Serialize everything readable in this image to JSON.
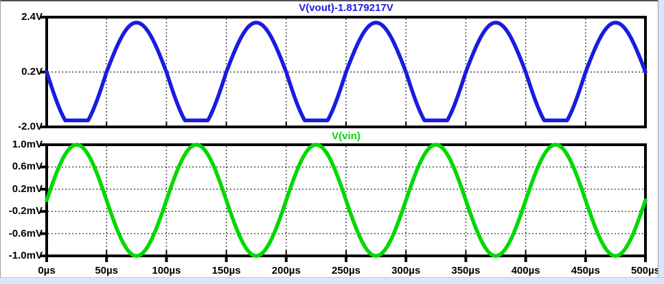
{
  "window_chrome": {
    "edge_strip_color": "#d7e8fb",
    "edge_strip_border_color": "#b7cbe2",
    "top_line_color": "#4f4f4f",
    "left_line_color": "#9e9e9e"
  },
  "chart_data": {
    "type": "line",
    "description": "Two stacked oscilloscope-style transient analysis panes: top pane shows DC-shifted output sine wave with clipped negative peaks, bottom pane shows 1 mV input sine wave; 5 cycles of a 100 us period over 0-500 us.",
    "style": {
      "background": "#ffffff",
      "axis_color": "#000000",
      "grid_color": "#3c3c3c",
      "text_color": "#000000",
      "grid": "dashed"
    },
    "x_axis": {
      "unit": "µs",
      "range": [
        0,
        500
      ],
      "ticks": [
        0,
        50,
        100,
        150,
        200,
        250,
        300,
        350,
        400,
        450,
        500
      ],
      "tick_labels": [
        "0µs",
        "50µs",
        "100µs",
        "150µs",
        "200µs",
        "250µs",
        "300µs",
        "350µs",
        "400µs",
        "450µs",
        "500µs"
      ]
    },
    "panels": [
      {
        "id": "vout",
        "title": "V(vout)-1.8179217V",
        "color": "#1b1be0",
        "y_unit": "V",
        "y_range": [
          -2.0,
          2.4
        ],
        "y_ticks": [
          2.4,
          0.2,
          -2.0
        ],
        "y_tick_labels": [
          "2.4V",
          "0.2V",
          "-2.0V"
        ],
        "grid_y": [
          0.2
        ],
        "series": {
          "name": "V(vout)-1.8179217V",
          "waveform": "inverted_clipped_sine",
          "period_us": 100,
          "phase_deg": 0,
          "cycles": 5,
          "offset": 0.2,
          "amp_up": 1.98,
          "amp_down": 2.35,
          "clip_min": -1.74,
          "peak_max": 2.18,
          "value_at_0us": 0.2
        }
      },
      {
        "id": "vin",
        "title": "V(vin)",
        "color": "#00d900",
        "y_unit": "mV",
        "y_range": [
          -1.0,
          1.0
        ],
        "y_ticks": [
          1.0,
          0.6,
          0.2,
          -0.2,
          -0.6,
          -1.0
        ],
        "y_tick_labels": [
          "1.0mV",
          "0.6mV",
          "0.2mV",
          "-0.2mV",
          "-0.6mV",
          "-1.0mV"
        ],
        "grid_y": [
          0.6,
          0.2,
          -0.2,
          -0.6
        ],
        "series": {
          "name": "V(vin)",
          "waveform": "sine",
          "period_us": 100,
          "phase_deg": 0,
          "cycles": 5,
          "amplitude": 1.0,
          "value_at_0us": 0.0
        }
      }
    ]
  }
}
